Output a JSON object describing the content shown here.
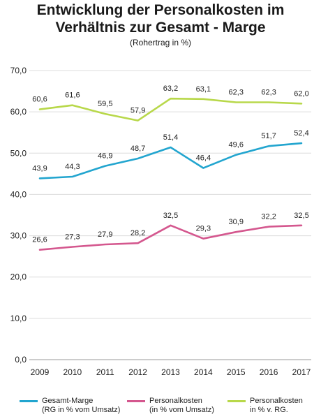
{
  "chart_data": {
    "type": "line",
    "title_line1": "Entwicklung der Personalkosten im",
    "title_line2": "Verhältnis zur Gesamt - Marge",
    "subtitle": "(Rohertrag in %)",
    "x": [
      "2009",
      "2010",
      "2011",
      "2012",
      "2013",
      "2014",
      "2015",
      "2016",
      "2017"
    ],
    "ylim": [
      0,
      70
    ],
    "yticks": [
      "0,0",
      "10,0",
      "20,0",
      "30,0",
      "40,0",
      "50,0",
      "60,0",
      "70,0"
    ],
    "grid": true,
    "legend_position": "bottom",
    "series": [
      {
        "key": "gesamt",
        "name_line1": "Gesamt-Marge",
        "name_line2": "(RG in % vom Umsatz)",
        "color": "#22a5cf",
        "values": [
          43.9,
          44.3,
          46.9,
          48.7,
          51.4,
          46.4,
          49.6,
          51.7,
          52.4
        ],
        "labels": [
          "43,9",
          "44,3",
          "46,9",
          "48,7",
          "51,4",
          "46,4",
          "49,6",
          "51,7",
          "52,4"
        ]
      },
      {
        "key": "personal",
        "name_line1": "Personalkosten",
        "name_line2": "(in % vom Umsatz)",
        "color": "#d4578e",
        "values": [
          26.6,
          27.3,
          27.9,
          28.2,
          32.5,
          29.3,
          30.9,
          32.2,
          32.5
        ],
        "labels": [
          "26,6",
          "27,3",
          "27,9",
          "28,2",
          "32,5",
          "29,3",
          "30,9",
          "32,2",
          "32,5"
        ]
      },
      {
        "key": "personal_rg",
        "name_line1": "Personalkosten",
        "name_line2": "in % v. RG.",
        "color": "#b8d84a",
        "values": [
          60.6,
          61.6,
          59.5,
          57.9,
          63.2,
          63.1,
          62.3,
          62.3,
          62.0
        ],
        "labels": [
          "60,6",
          "61,6",
          "59,5",
          "57,9",
          "63,2",
          "63,1",
          "62,3",
          "62,3",
          "62,0"
        ]
      }
    ]
  }
}
